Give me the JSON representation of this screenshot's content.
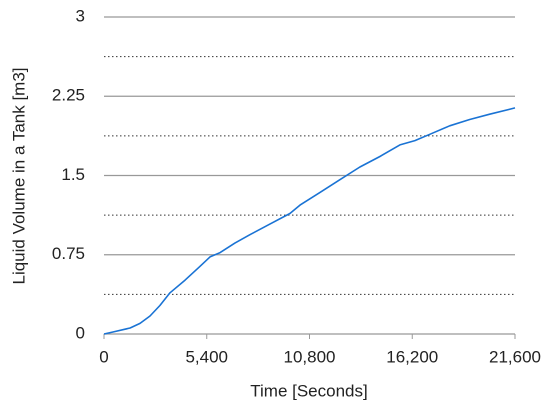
{
  "chart_data": {
    "type": "line",
    "x_label": "Time [Seconds]",
    "y_label": "Liquid Volume in a Tank [m3]",
    "x": [
      0,
      500,
      1370,
      1890,
      2420,
      2940,
      3470,
      4260,
      5040,
      5570,
      6100,
      6880,
      7670,
      8720,
      9770,
      10300,
      11350,
      12400,
      13450,
      14500,
      15550,
      16340,
      17120,
      18170,
      19220,
      20270,
      21600
    ],
    "values": [
      0,
      0.02,
      0.057,
      0.1,
      0.17,
      0.27,
      0.39,
      0.51,
      0.64,
      0.73,
      0.77,
      0.86,
      0.94,
      1.04,
      1.14,
      1.22,
      1.34,
      1.46,
      1.58,
      1.68,
      1.79,
      1.83,
      1.89,
      1.97,
      2.03,
      2.08,
      2.14
    ],
    "color": "#1a73d4",
    "xlim": [
      0,
      21600
    ],
    "xticks": [
      0,
      {
        "value": 5400,
        "label": "5,400"
      },
      {
        "value": 10800,
        "label": "10,800"
      },
      {
        "value": 16200,
        "label": "16,200"
      },
      {
        "value": 21600,
        "label": "21,600"
      }
    ],
    "ylim": [
      0,
      3
    ],
    "yticks": [
      0,
      0.75,
      1.5,
      2.25,
      3
    ],
    "minor_yticks": [
      0.375,
      1.125,
      1.875,
      2.625
    ],
    "grid": true
  }
}
